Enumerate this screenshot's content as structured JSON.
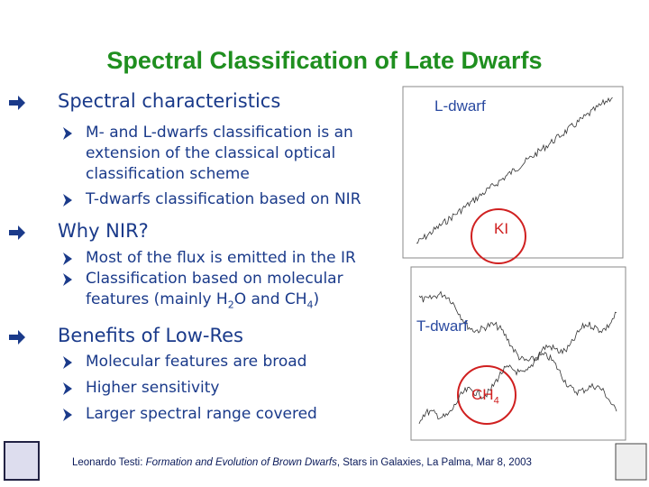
{
  "title": "Spectral Classification of Late Dwarfs",
  "sections": [
    {
      "heading": "Spectral characteristics",
      "items": [
        {
          "lines": [
            "M- and L-dwarfs classification is an",
            "extension of the classical optical",
            "classification scheme"
          ]
        },
        {
          "lines": [
            "T-dwarfs classification based on NIR"
          ]
        }
      ]
    },
    {
      "heading": "Why NIR?",
      "items": [
        {
          "lines": [
            "Most of the flux is emitted in the IR"
          ]
        },
        {
          "lines": [
            "Classification based on molecular"
          ],
          "parts": [
            "features (mainly H",
            "2",
            "O and CH",
            "4",
            ")"
          ]
        }
      ]
    },
    {
      "heading": "Benefits of Low-Res",
      "items": [
        {
          "lines": [
            "Molecular features are broad"
          ]
        },
        {
          "lines": [
            "Higher sensitivity"
          ]
        },
        {
          "lines": [
            "Larger spectral range covered"
          ]
        }
      ]
    }
  ],
  "figure": {
    "top_label": "L-dwarf",
    "top_feature": "KI",
    "bottom_label": "T-dwarf",
    "bottom_feature": "CH",
    "bottom_feature_sub": "4"
  },
  "footer": {
    "author": "Leonardo Testi",
    "separator": ":",
    "talk": " Formation and Evolution of Brown Dwarfs",
    "venue": ", Stars in Galaxies, La Palma, Mar 8, 2003"
  }
}
